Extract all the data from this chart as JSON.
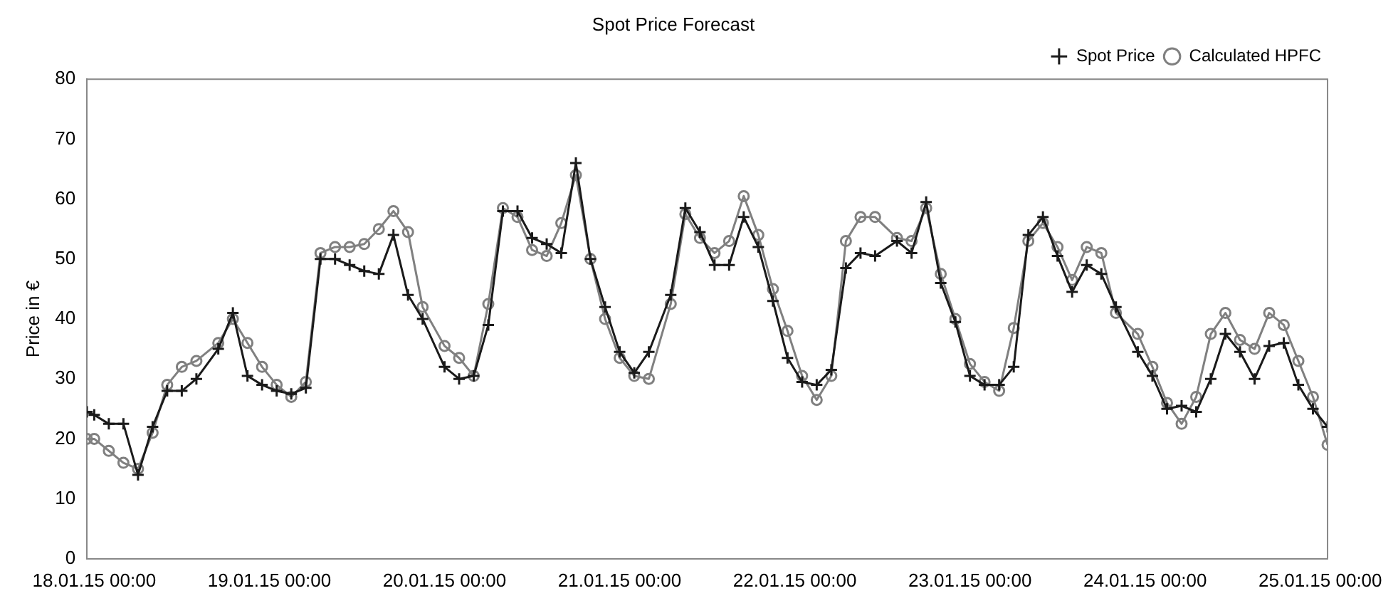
{
  "chart_data": {
    "type": "line",
    "title": "Spot Price Forecast",
    "ylabel": "Price in €",
    "x": [
      "--01-17T23:00",
      "--01-18T00:00",
      "--01-18T02:00",
      "--01-18T04:00",
      "--01-18T06:00",
      "--01-18T08:00",
      "--01-18T10:00",
      "--01-18T12:00",
      "--01-18T14:00",
      "--01-18T17:00",
      "--01-18T19:00",
      "--01-18T21:00",
      "--01-18T23:00",
      "--01-19T01:00",
      "--01-19T03:00",
      "--01-19T05:00",
      "--01-19T07:00",
      "--01-19T09:00",
      "--01-19T11:00",
      "--01-19T13:00",
      "--01-19T15:00",
      "--01-19T17:00",
      "--01-19T19:00",
      "--01-19T21:00",
      "--01-20T00:00",
      "--01-20T02:00",
      "--01-20T04:00",
      "--01-20T06:00",
      "--01-20T08:00",
      "--01-20T10:00",
      "--01-20T12:00",
      "--01-20T14:00",
      "--01-20T16:00",
      "--01-20T18:00",
      "--01-20T20:00",
      "--01-20T22:00",
      "--01-21T00:00",
      "--01-21T02:00",
      "--01-21T04:00",
      "--01-21T07:00",
      "--01-21T09:00",
      "--01-21T11:00",
      "--01-21T13:00",
      "--01-21T15:00",
      "--01-21T17:00",
      "--01-21T19:00",
      "--01-21T21:00",
      "--01-21T23:00",
      "--01-22T01:00",
      "--01-22T03:00",
      "--01-22T05:00",
      "--01-22T07:00",
      "--01-22T09:00",
      "--01-22T11:00",
      "--01-22T14:00",
      "--01-22T16:00",
      "--01-22T18:00",
      "--01-22T20:00",
      "--01-22T22:00",
      "--01-23T00:00",
      "--01-23T02:00",
      "--01-23T04:00",
      "--01-23T06:00",
      "--01-23T08:00",
      "--01-23T10:00",
      "--01-23T12:00",
      "--01-23T14:00",
      "--01-23T16:00",
      "--01-23T18:00",
      "--01-23T20:00",
      "--01-23T23:00",
      "--01-24T01:00",
      "--01-24T03:00",
      "--01-24T05:00",
      "--01-24T07:00",
      "--01-24T09:00",
      "--01-24T11:00",
      "--01-24T13:00",
      "--01-24T15:00",
      "--01-24T17:00",
      "--01-24T19:00",
      "--01-24T21:00",
      "--01-24T23:00",
      "--01-25T01:00"
    ],
    "series": [
      {
        "name": "Spot Price",
        "color": "#1a1a1a",
        "marker": "cross",
        "values": [
          24.5,
          24,
          22.5,
          22.5,
          14,
          22,
          28,
          28,
          30,
          35,
          41,
          30.5,
          29,
          28,
          27.5,
          28.5,
          50,
          50,
          49,
          48,
          47.5,
          54,
          44,
          40,
          32,
          30,
          30.5,
          39,
          58,
          58,
          53.5,
          52.5,
          51,
          66,
          50,
          42,
          34.5,
          31,
          34.5,
          44,
          58.5,
          54.5,
          49,
          49,
          57,
          52,
          43,
          33.5,
          29.5,
          29,
          31.5,
          48.5,
          51,
          50.5,
          53,
          51,
          59.5,
          46,
          39.5,
          30.5,
          29,
          29,
          32,
          54,
          57,
          50.5,
          44.5,
          49,
          47.5,
          42,
          34.5,
          30.5,
          25,
          25.5,
          24.5,
          30,
          37.5,
          34.5,
          30,
          35.5,
          36,
          29,
          25,
          22
        ]
      },
      {
        "name": "Calculated HPFC",
        "color": "#808080",
        "marker": "circle",
        "values": [
          20,
          20,
          18,
          16,
          15,
          21,
          29,
          32,
          33,
          36,
          40,
          36,
          32,
          29,
          27,
          29.5,
          51,
          52,
          52,
          52.5,
          55,
          58,
          54.5,
          42,
          35.5,
          33.5,
          30.5,
          42.5,
          58.5,
          57,
          51.5,
          50.5,
          56,
          64,
          50,
          40,
          33.5,
          30.5,
          30,
          42.5,
          57.5,
          53.5,
          51,
          53,
          60.5,
          54,
          45,
          38,
          30.5,
          26.5,
          30.5,
          53,
          57,
          57,
          53.5,
          53,
          58.5,
          47.5,
          40,
          32.5,
          29.5,
          28,
          38.5,
          53,
          56,
          52,
          46.5,
          52,
          51,
          41,
          37.5,
          32,
          26,
          22.5,
          27,
          37.5,
          41,
          36.5,
          35,
          41,
          39,
          33,
          27,
          19
        ]
      }
    ],
    "xlim": [
      "--01-17T23:00",
      "--01-25T01:00"
    ],
    "xticks": [
      {
        "value": "--01-18T00:00",
        "label": "18.01.15 00:00"
      },
      {
        "value": "--01-19T00:00",
        "label": "19.01.15 00:00"
      },
      {
        "value": "--01-20T00:00",
        "label": "20.01.15 00:00"
      },
      {
        "value": "--01-21T00:00",
        "label": "21.01.15 00:00"
      },
      {
        "value": "--01-22T00:00",
        "label": "22.01.15 00:00"
      },
      {
        "value": "--01-23T00:00",
        "label": "23.01.15 00:00"
      },
      {
        "value": "--01-24T00:00",
        "label": "24.01.15 00:00"
      },
      {
        "value": "--01-25T00:00",
        "label": "25.01.15 00:00"
      }
    ],
    "ylim": [
      0,
      80
    ],
    "yticks": [
      0,
      10,
      20,
      30,
      40,
      50,
      60,
      70,
      80
    ],
    "grid": false,
    "legend": "top right",
    "line_style": "solid"
  }
}
